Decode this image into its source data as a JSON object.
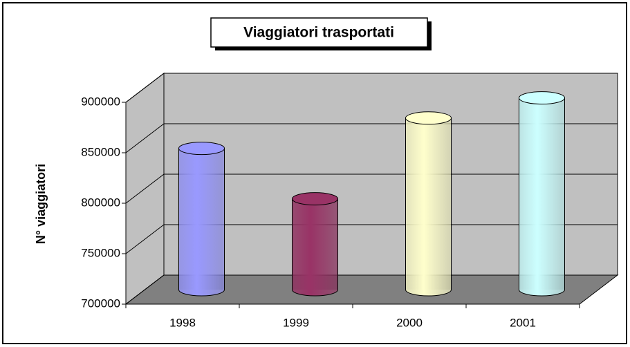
{
  "chart_data": {
    "type": "bar3d",
    "title": "Viaggiatori trasportati",
    "y_label": "N° viaggiatori",
    "categories": [
      "1998",
      "1999",
      "2000",
      "2001"
    ],
    "values": [
      840000,
      790000,
      870000,
      890000
    ],
    "colors": [
      "#9999ff",
      "#993366",
      "#ffffcc",
      "#ccffff"
    ],
    "ylim": [
      700000,
      900000
    ],
    "yticks": [
      700000,
      750000,
      800000,
      850000,
      900000
    ],
    "grid": true
  }
}
